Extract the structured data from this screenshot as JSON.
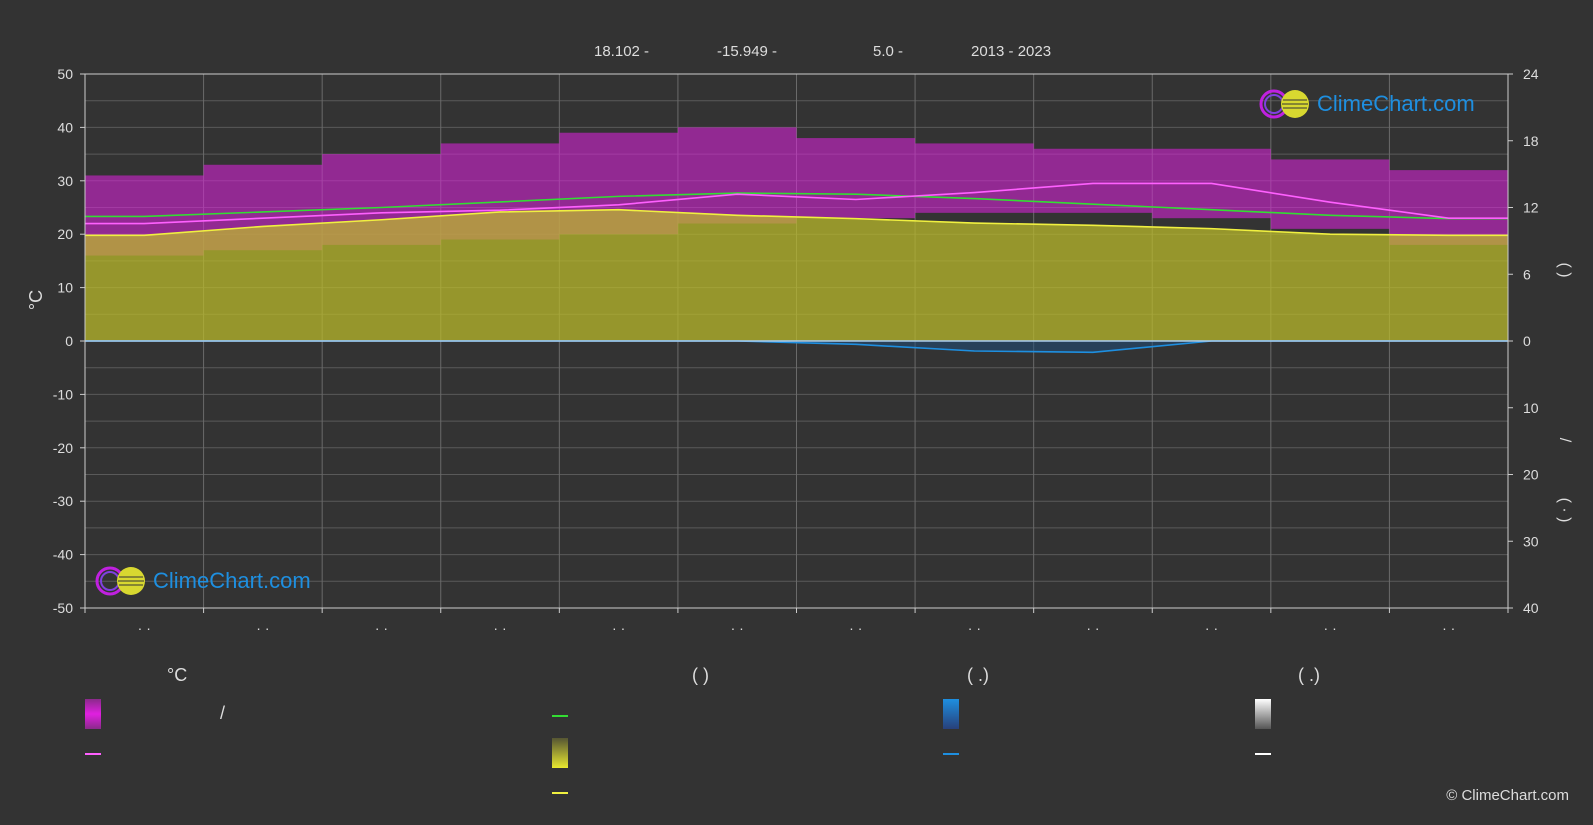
{
  "header": {
    "latitude": "18.102 -",
    "longitude": "-15.949 -",
    "elevation": "5.0 -",
    "years": "2013 - 2023"
  },
  "logo_text": "ClimeChart.com",
  "copyright": "© ClimeChart.com",
  "left_axis_unit": "°C",
  "right_axis_top_parens": "(   )",
  "right_axis_bottom": [
    "/",
    "(  ·  )"
  ],
  "month_tick_label": "· ·",
  "legend": {
    "temperature_title": "°C",
    "sunshine_title": "(          )",
    "rain_title": "(   .)",
    "snow_title": "(   .)",
    "range_slash": "/"
  },
  "colors": {
    "background": "#333333",
    "daily_range": "#e020e0",
    "avg_temp": "#ff60ff",
    "daylight": "#33dd33",
    "sunshine_fill": "#bdbd2a",
    "sunshine_line": "#f0f040",
    "rain": "#1e8fe0",
    "snow": "#ffffff",
    "logo": "#1e8fe0"
  },
  "chart_data": {
    "type": "line",
    "x_positions_months": [
      "",
      "",
      "",
      "",
      "",
      "",
      "",
      "",
      "",
      "",
      "",
      ""
    ],
    "ylim_left": [
      -50,
      50
    ],
    "yticks_left": [
      50,
      40,
      30,
      20,
      10,
      0,
      -10,
      -20,
      -30,
      -40,
      -50
    ],
    "ylim_right_sun": [
      0,
      24
    ],
    "yticks_right_sun": [
      24,
      18,
      12,
      6,
      0
    ],
    "yticks_right_precip": [
      10,
      20,
      30,
      40
    ],
    "grid": true,
    "series": [
      {
        "key": "daylight",
        "values": [
          11.2,
          11.6,
          12.0,
          12.5,
          13.0,
          13.3,
          13.2,
          12.8,
          12.3,
          11.8,
          11.3,
          11.0
        ]
      },
      {
        "key": "sunshine",
        "values": [
          9.5,
          10.3,
          10.9,
          11.6,
          11.8,
          11.3,
          11.0,
          10.6,
          10.4,
          10.1,
          9.6,
          9.5
        ]
      },
      {
        "key": "avg_temp",
        "values": [
          22.0,
          23.0,
          24.0,
          24.5,
          25.5,
          27.5,
          26.5,
          27.8,
          29.5,
          29.5,
          26.0,
          23.0
        ]
      },
      {
        "key": "rain",
        "values": [
          0.0,
          0.0,
          0.0,
          0.0,
          0.0,
          0.0,
          0.5,
          1.5,
          1.7,
          0.0,
          0.0,
          0.0
        ]
      }
    ],
    "daily_range": {
      "min": [
        16,
        17,
        18,
        19,
        20,
        22,
        23,
        24,
        24,
        23,
        21,
        18
      ],
      "max": [
        31,
        33,
        35,
        37,
        39,
        40,
        38,
        37,
        36,
        36,
        34,
        32
      ]
    }
  }
}
